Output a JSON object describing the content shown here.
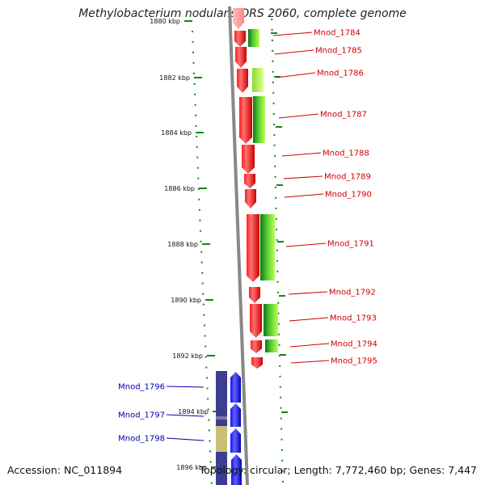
{
  "title": "Methylobacterium nodulans ORS 2060, complete genome",
  "footer": {
    "accession": "Accession: NC_011894",
    "stats": "Topology: circular; Length: 7,772,460 bp; Genes: 7,447"
  },
  "scale": {
    "ticks": [
      "1880 kbp",
      "1882 kbp",
      "1884 kbp",
      "1886 kbp",
      "1888 kbp",
      "1890 kbp",
      "1892 kbp",
      "1894 kbp",
      "1896 kbp"
    ]
  },
  "genes_right": [
    "Mnod_1784",
    "Mnod_1785",
    "Mnod_1786",
    "Mnod_1787",
    "Mnod_1788",
    "Mnod_1789",
    "Mnod_1790",
    "Mnod_1791",
    "Mnod_1792",
    "Mnod_1793",
    "Mnod_1794",
    "Mnod_1795"
  ],
  "genes_left": [
    "Mnod_1796",
    "Mnod_1797",
    "Mnod_1798"
  ],
  "colors": {
    "forward_gene": "#ee0000",
    "reverse_gene": "#0000ee",
    "ortholog_green": "#33aa33",
    "ortholog_lime": "#aaee44",
    "ortholog_navy": "#3d3d8f",
    "ortholog_khaki": "#c8be78",
    "axis_gray": "#888888",
    "dotted_green": "#118811"
  }
}
